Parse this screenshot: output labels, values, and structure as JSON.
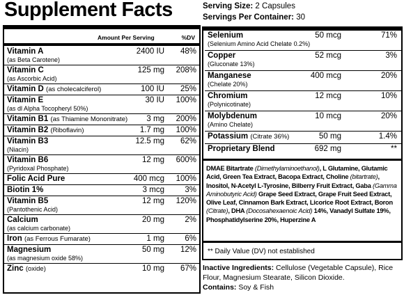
{
  "header": {
    "title": "Supplement Facts",
    "serving_size_label": "Serving Size:",
    "serving_size": "2 Capsules",
    "servings_label": "Servings Per Container:",
    "servings": "30"
  },
  "left_table": {
    "columns": [
      "Amount Per Serving",
      "%DV"
    ],
    "rows": [
      {
        "name": "Vitamin A",
        "detail": "(as Beta Carotene)",
        "amount": "2400 IU",
        "dv": "48%"
      },
      {
        "name": "Vitamin C",
        "detail": "(as Ascorbic Acid)",
        "amount": "125 mg",
        "dv": "208%"
      },
      {
        "name": "Vitamin D",
        "inline_detail": "(as cholecalciferol)",
        "amount": "100 IU",
        "dv": "25%"
      },
      {
        "name": "Vitamin E",
        "detail": "(as dl Alpha Tocopheryl 50%)",
        "amount": "30 IU",
        "dv": "100%"
      },
      {
        "name": "Vitamin B1",
        "inline_detail": "(as Thiamine Mononitrate)",
        "amount": "3 mg",
        "dv": "200%"
      },
      {
        "name": "Vitamin B2",
        "inline_detail": "(Riboflavin)",
        "amount": "1.7 mg",
        "dv": "100%"
      },
      {
        "name": "Vitamin B3",
        "detail": "(Niacin)",
        "amount": "12.5 mg",
        "dv": "62%"
      },
      {
        "name": "Vitamin B6",
        "detail": "(Pyridoxal Phosphate)",
        "amount": "12 mg",
        "dv": "600%"
      },
      {
        "name": "Folic Acid Pure",
        "amount": "400 mcg",
        "dv": "100%"
      },
      {
        "name": "Biotin 1%",
        "amount": "3 mcg",
        "dv": "3%"
      },
      {
        "name": "Vitamin B5",
        "detail": "(Pantothenic Acid)",
        "amount": "12 mg",
        "dv": "120%"
      },
      {
        "name": "Calcium",
        "detail": "(as calcium carbonate)",
        "amount": "20 mg",
        "dv": "2%"
      },
      {
        "name": "Iron",
        "inline_detail": "(as Ferrous Fumarate)",
        "amount": "1 mg",
        "dv": "6%"
      },
      {
        "name": "Magnesium",
        "detail": "(as magnesium oxide 58%)",
        "amount": "50 mg",
        "dv": "12%"
      },
      {
        "name": "Zinc",
        "inline_detail": "(oxide)",
        "amount": "10 mg",
        "dv": "67%"
      }
    ]
  },
  "right_table": {
    "rows": [
      {
        "name": "Selenium",
        "detail": "(Selenium Amino Acid Chelate 0.2%)",
        "amount": "50 mcg",
        "dv": "71%"
      },
      {
        "name": "Copper",
        "detail": "(Gluconate 13%)",
        "amount": "52 mcg",
        "dv": "3%"
      },
      {
        "name": "Manganese",
        "detail": "(Chelate 20%)",
        "amount": "400 mcg",
        "dv": "20%"
      },
      {
        "name": "Chromium",
        "detail": "(Polynicotinate)",
        "amount": "12 mcg",
        "dv": "10%"
      },
      {
        "name": "Molybdenum",
        "detail": "(Amino Chelate)",
        "amount": "10 mcg",
        "dv": "20%"
      },
      {
        "name": "Potassium",
        "inline_detail": "(Citrate 36%)",
        "amount": "50 mg",
        "dv": "1.4%"
      },
      {
        "name": "Proprietary Blend",
        "amount": "692 mg",
        "dv": "**"
      }
    ]
  },
  "blend_ingredients": [
    {
      "text": "DMAE Bitartrate "
    },
    {
      "text": "(Dimethylaminoethanol)",
      "italic": true
    },
    {
      "text": ", L Glutamine, Glutamic Acid, Green Tea Extract, Bacopa Extract, Choline "
    },
    {
      "text": "(bitartrate)",
      "italic": true
    },
    {
      "text": ", Inositol, N-Acetyl L-Tyrosine, Bilberry Fruit Extract, Gaba "
    },
    {
      "text": "(Gamma Aminobutyric Acid)",
      "italic": true
    },
    {
      "text": " Grape Seed Extract, Grape Fruit Seed Extract, Olive Leaf, Cinnamon Bark Extract, Licorice Root Extract, Boron "
    },
    {
      "text": "(Citrate)",
      "italic": true
    },
    {
      "text": ", DHA "
    },
    {
      "text": "(Docosahexaenoic Acid)",
      "italic": true
    },
    {
      "text": " 14%, Vanadyl Sulfate 19%, Phosphatidylserine 20%, Huperzine A"
    }
  ],
  "footnote": "** Daily Value (DV) not established",
  "inactive": {
    "label": "Inactive Ingredients:",
    "text": "Cellulose (Vegetable Capsule), Rice Flour, Magnesium Stearate, Silicon Dioxide."
  },
  "contains": {
    "label": "Contains:",
    "text": "Soy & Fish"
  }
}
